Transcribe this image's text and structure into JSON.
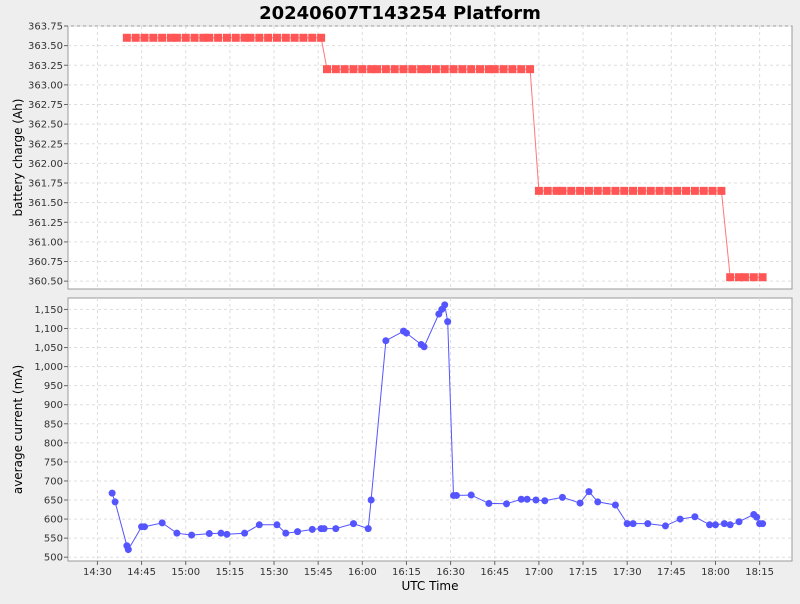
{
  "chart_data": {
    "type": "line",
    "title": "20240607T143254 Platform",
    "xlabel": "UTC Time",
    "x_ticks": [
      "14:30",
      "14:45",
      "15:00",
      "15:15",
      "15:30",
      "15:45",
      "16:00",
      "16:15",
      "16:30",
      "16:45",
      "17:00",
      "17:15",
      "17:30",
      "17:45",
      "18:00",
      "18:15"
    ],
    "grid": true,
    "legend": "none",
    "panels": [
      {
        "ylabel": "battery charge (Ah)",
        "ylim": [
          360.4,
          363.75
        ],
        "y_ticks": [
          "360.50",
          "360.75",
          "361.00",
          "361.25",
          "361.50",
          "361.75",
          "362.00",
          "362.25",
          "362.50",
          "362.75",
          "363.00",
          "363.25",
          "363.50",
          "363.75"
        ],
        "marker": "square",
        "color": "#ff5555",
        "line_color": "#ff7777",
        "series": [
          {
            "x": [
              "14:40",
              "14:43",
              "14:46",
              "14:49",
              "14:52",
              "14:55",
              "14:57",
              "15:00",
              "15:03",
              "15:06",
              "15:08",
              "15:11",
              "15:14",
              "15:17",
              "15:20",
              "15:22",
              "15:25",
              "15:28",
              "15:31",
              "15:34",
              "15:37",
              "15:40",
              "15:43",
              "15:46",
              "15:48",
              "15:51",
              "15:54",
              "15:57",
              "16:00",
              "16:03",
              "16:05",
              "16:08",
              "16:11",
              "16:14",
              "16:17",
              "16:20",
              "16:22",
              "16:25",
              "16:28",
              "16:31",
              "16:34",
              "16:37",
              "16:40",
              "16:43",
              "16:45",
              "16:48",
              "16:51",
              "16:54",
              "16:57",
              "17:00",
              "17:03",
              "17:06",
              "17:08",
              "17:11",
              "17:14",
              "17:17",
              "17:20",
              "17:23",
              "17:26",
              "17:29",
              "17:32",
              "17:35",
              "17:38",
              "17:41",
              "17:44",
              "17:47",
              "17:50",
              "17:53",
              "17:56",
              "17:59",
              "18:02",
              "18:05",
              "18:08",
              "18:10",
              "18:13",
              "18:16"
            ],
            "y": [
              363.6,
              363.6,
              363.6,
              363.6,
              363.6,
              363.6,
              363.6,
              363.6,
              363.6,
              363.6,
              363.6,
              363.6,
              363.6,
              363.6,
              363.6,
              363.6,
              363.6,
              363.6,
              363.6,
              363.6,
              363.6,
              363.6,
              363.6,
              363.6,
              363.2,
              363.2,
              363.2,
              363.2,
              363.2,
              363.2,
              363.2,
              363.2,
              363.2,
              363.2,
              363.2,
              363.2,
              363.2,
              363.2,
              363.2,
              363.2,
              363.2,
              363.2,
              363.2,
              363.2,
              363.2,
              363.2,
              363.2,
              363.2,
              363.2,
              361.65,
              361.65,
              361.65,
              361.65,
              361.65,
              361.65,
              361.65,
              361.65,
              361.65,
              361.65,
              361.65,
              361.65,
              361.65,
              361.65,
              361.65,
              361.65,
              361.65,
              361.65,
              361.65,
              361.65,
              361.65,
              361.65,
              360.55,
              360.55,
              360.55,
              360.55,
              360.55
            ]
          }
        ]
      },
      {
        "ylabel": "average current (mA)",
        "ylim": [
          490,
          1180
        ],
        "y_ticks": [
          "500",
          "550",
          "600",
          "650",
          "700",
          "750",
          "800",
          "850",
          "900",
          "950",
          "1,000",
          "1,050",
          "1,100",
          "1,150"
        ],
        "marker": "circle",
        "color": "#5555ff",
        "line_color": "#5555ff",
        "series": [
          {
            "x": [
              "14:35",
              "14:36",
              "14:40",
              "14:40.5",
              "14:45",
              "14:46",
              "14:52",
              "14:57",
              "15:02",
              "15:08",
              "15:12",
              "15:14",
              "15:20",
              "15:25",
              "15:31",
              "15:34",
              "15:38",
              "15:43",
              "15:46",
              "15:47",
              "15:51",
              "15:57",
              "16:02",
              "16:03",
              "16:08",
              "16:14",
              "16:15",
              "16:20",
              "16:21",
              "16:26",
              "16:27",
              "16:28",
              "16:29",
              "16:31",
              "16:32",
              "16:37",
              "16:43",
              "16:49",
              "16:54",
              "16:56",
              "16:59",
              "17:02",
              "17:08",
              "17:14",
              "17:17",
              "17:20",
              "17:26",
              "17:30",
              "17:32",
              "17:37",
              "17:43",
              "17:48",
              "17:53",
              "17:58",
              "18:00",
              "18:03",
              "18:05",
              "18:08",
              "18:13",
              "18:14",
              "18:15",
              "18:16"
            ],
            "y": [
              668,
              645,
              530,
              520,
              580,
              580,
              590,
              563,
              558,
              562,
              563,
              560,
              563,
              585,
              585,
              563,
              567,
              573,
              575,
              575,
              575,
              588,
              575,
              650,
              1068,
              1093,
              1088,
              1058,
              1052,
              1138,
              1150,
              1162,
              1118,
              662,
              662,
              663,
              641,
              640,
              652,
              652,
              650,
              648,
              657,
              642,
              672,
              645,
              637,
              588,
              588,
              588,
              582,
              600,
              606,
              585,
              585,
              588,
              585,
              593,
              612,
              605,
              588,
              588
            ]
          }
        ]
      }
    ]
  }
}
